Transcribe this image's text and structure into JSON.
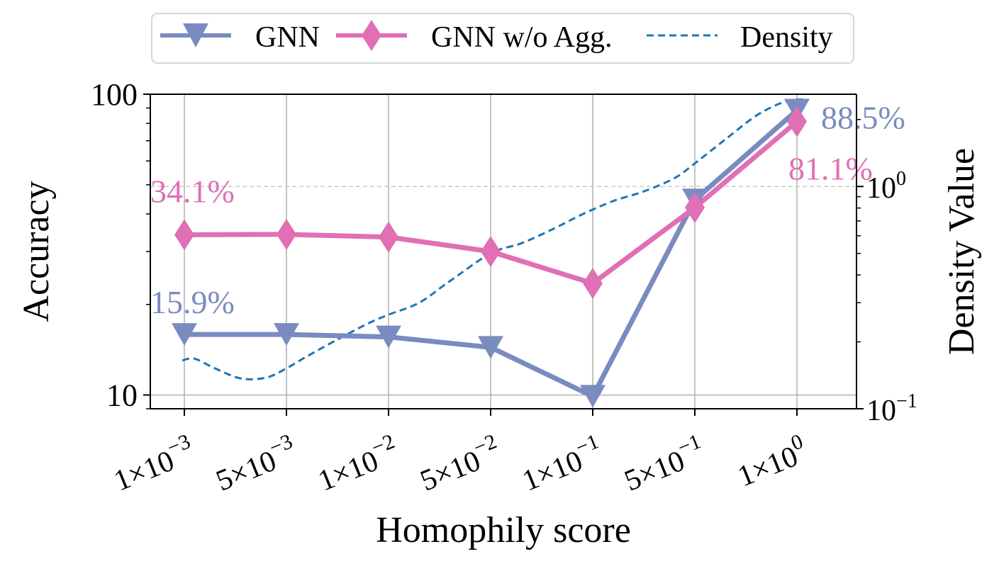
{
  "colors": {
    "gnn": "#7a8bbf",
    "gnn_no_agg": "#e06fb5",
    "density": "#1f77b4",
    "grid": "#b0b0b0"
  },
  "chart_data": {
    "type": "line",
    "xlabel": "Homophily score",
    "ylabel": "Accuracy",
    "y2label": "Density Value",
    "categories": [
      {
        "mant": "1×10",
        "exp": "−3"
      },
      {
        "mant": "5×10",
        "exp": "−3"
      },
      {
        "mant": "1×10",
        "exp": "−2"
      },
      {
        "mant": "5×10",
        "exp": "−2"
      },
      {
        "mant": "1×10",
        "exp": "−1"
      },
      {
        "mant": "5×10",
        "exp": "−1"
      },
      {
        "mant": "1×10",
        "exp": "0"
      }
    ],
    "y_scale": "log",
    "y_range": [
      9,
      100
    ],
    "y_ticks": [
      {
        "value": 10,
        "label": "10"
      },
      {
        "value": 100,
        "label": "100"
      }
    ],
    "y2_scale": "log",
    "y2_range": [
      0.1,
      2.6
    ],
    "y2_ticks": [
      {
        "value": 0.1,
        "mant": "10",
        "exp": "−1"
      },
      {
        "value": 1,
        "mant": "10",
        "exp": "0"
      }
    ],
    "grid": true,
    "legend_position": "top",
    "series": [
      {
        "key": "gnn",
        "name": "GNN",
        "marker": "triangle-down",
        "values": [
          15.9,
          15.9,
          15.6,
          14.4,
          9.9,
          44.5,
          88.5
        ],
        "labels": [
          {
            "index": 0,
            "text": "15.9%"
          },
          {
            "index": 6,
            "text": "88.5%"
          }
        ]
      },
      {
        "key": "gnn_no_agg",
        "name": "GNN w/o Agg.",
        "marker": "diamond",
        "values": [
          34.1,
          34.2,
          33.5,
          30.0,
          23.5,
          42.0,
          81.1
        ],
        "labels": [
          {
            "index": 0,
            "text": "34.1%"
          },
          {
            "index": 6,
            "text": "81.1%"
          }
        ]
      },
      {
        "key": "density",
        "name": "Density",
        "style": "dashed",
        "axis": "right",
        "x": [
          -0.02,
          0.1,
          0.3,
          0.55,
          0.8,
          1.0,
          1.2,
          1.5,
          1.8,
          2.0,
          2.3,
          2.6,
          3.0,
          3.3,
          3.6,
          3.9,
          4.2,
          4.5,
          4.8,
          5.0,
          5.3,
          5.6,
          5.85,
          6.0,
          6.1
        ],
        "values": [
          0.165,
          0.168,
          0.152,
          0.137,
          0.138,
          0.152,
          0.172,
          0.205,
          0.242,
          0.265,
          0.3,
          0.375,
          0.5,
          0.555,
          0.64,
          0.75,
          0.86,
          0.95,
          1.09,
          1.27,
          1.63,
          2.08,
          2.38,
          2.46,
          2.45
        ]
      }
    ],
    "reference_lines": [
      {
        "axis": "right",
        "value": 1.0,
        "style": "dashed"
      }
    ]
  }
}
